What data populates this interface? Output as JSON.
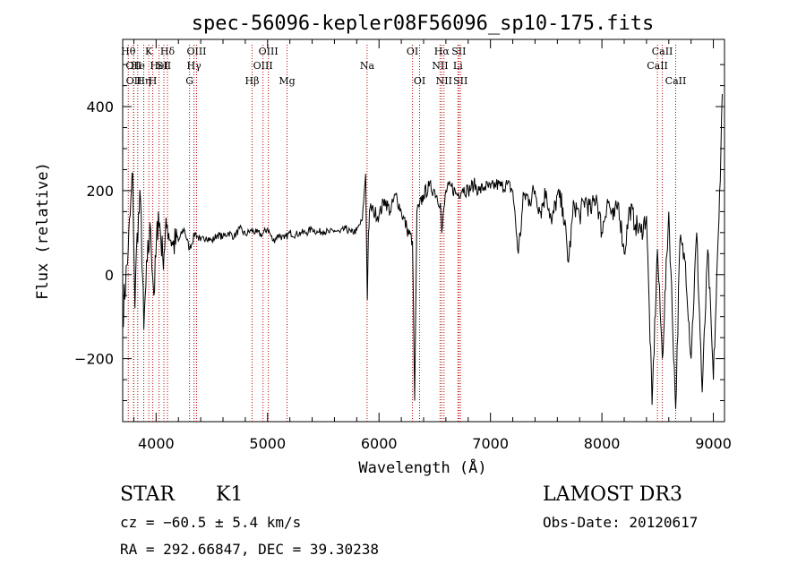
{
  "chart_data": {
    "type": "line",
    "title": "spec-56096-kepler08F56096_sp10-175.fits",
    "xlabel": "Wavelength (Å)",
    "ylabel": "Flux (relative)",
    "xlim": [
      3700,
      9100
    ],
    "ylim": [
      -350,
      560
    ],
    "xticks": [
      4000,
      5000,
      6000,
      7000,
      8000,
      9000
    ],
    "yticks": [
      -200,
      0,
      200,
      400
    ],
    "grid": false,
    "series": [
      {
        "name": "spectrum",
        "x": [
          3700,
          3750,
          3790,
          3810,
          3830,
          3860,
          3890,
          3920,
          3950,
          3980,
          4020,
          4060,
          4100,
          4150,
          4200,
          4250,
          4300,
          4350,
          4400,
          4450,
          4500,
          4550,
          4600,
          4650,
          4700,
          4750,
          4800,
          4850,
          4900,
          4950,
          5000,
          5050,
          5100,
          5150,
          5200,
          5250,
          5300,
          5350,
          5400,
          5450,
          5500,
          5550,
          5600,
          5650,
          5700,
          5750,
          5800,
          5850,
          5880,
          5895,
          5905,
          5920,
          5950,
          6000,
          6050,
          6100,
          6150,
          6200,
          6250,
          6300,
          6320,
          6340,
          6360,
          6400,
          6450,
          6500,
          6550,
          6563,
          6600,
          6650,
          6700,
          6750,
          6800,
          6850,
          6900,
          6950,
          7000,
          7050,
          7100,
          7150,
          7200,
          7250,
          7300,
          7350,
          7400,
          7450,
          7500,
          7550,
          7600,
          7650,
          7700,
          7750,
          7800,
          7850,
          7900,
          7950,
          8000,
          8050,
          8100,
          8150,
          8200,
          8250,
          8300,
          8350,
          8400,
          8450,
          8498,
          8542,
          8600,
          8662,
          8700,
          8750,
          8800,
          8850,
          8900,
          8950,
          9000,
          9050,
          9080
        ],
        "y": [
          -100,
          60,
          240,
          -80,
          100,
          180,
          -130,
          30,
          110,
          -50,
          150,
          40,
          120,
          70,
          80,
          110,
          60,
          100,
          80,
          90,
          80,
          95,
          90,
          100,
          90,
          110,
          95,
          105,
          100,
          95,
          110,
          80,
          95,
          85,
          100,
          95,
          100,
          100,
          110,
          100,
          105,
          100,
          105,
          100,
          110,
          100,
          105,
          130,
          240,
          -60,
          100,
          160,
          150,
          140,
          180,
          150,
          190,
          150,
          110,
          80,
          -300,
          150,
          160,
          190,
          210,
          200,
          170,
          100,
          200,
          210,
          190,
          205,
          200,
          215,
          200,
          210,
          205,
          215,
          210,
          215,
          200,
          50,
          190,
          180,
          200,
          150,
          200,
          120,
          190,
          160,
          30,
          170,
          140,
          180,
          150,
          190,
          100,
          180,
          130,
          170,
          50,
          160,
          120,
          100,
          140,
          -310,
          60,
          -200,
          150,
          -320,
          80,
          30,
          -200,
          100,
          -280,
          60,
          -250,
          130,
          430
        ]
      }
    ],
    "lines": [
      {
        "wl": 3750,
        "label": "Hθ",
        "row": 1
      },
      {
        "wl": 3798,
        "label": "OII",
        "row": 2
      },
      {
        "wl": 3800,
        "label": "OII",
        "row": 3
      },
      {
        "wl": 3835,
        "label": "He",
        "row": 2
      },
      {
        "wl": 3889,
        "label": "Hη",
        "row": 3
      },
      {
        "wl": 3934,
        "label": "K",
        "row": 1
      },
      {
        "wl": 3970,
        "label": "H",
        "row": 3
      },
      {
        "wl": 4026,
        "label": "HeI",
        "row": 2
      },
      {
        "wl": 4070,
        "label": "SII",
        "row": 2
      },
      {
        "wl": 4102,
        "label": "Hδ",
        "row": 1
      },
      {
        "wl": 4300,
        "label": "G",
        "row": 3
      },
      {
        "wl": 4340,
        "label": "Hγ",
        "row": 2
      },
      {
        "wl": 4363,
        "label": "OIII",
        "row": 1
      },
      {
        "wl": 4861,
        "label": "Hβ",
        "row": 3
      },
      {
        "wl": 4959,
        "label": "OIII",
        "row": 2
      },
      {
        "wl": 5007,
        "label": "OIII",
        "row": 1
      },
      {
        "wl": 5175,
        "label": "Mg",
        "row": 3
      },
      {
        "wl": 5893,
        "label": "Na",
        "row": 2
      },
      {
        "wl": 6300,
        "label": "OI",
        "row": 1
      },
      {
        "wl": 6364,
        "label": "OI",
        "row": 3
      },
      {
        "wl": 6548,
        "label": "NII",
        "row": 2
      },
      {
        "wl": 6563,
        "label": "Hα",
        "row": 1
      },
      {
        "wl": 6583,
        "label": "NII",
        "row": 3
      },
      {
        "wl": 6708,
        "label": "Li",
        "row": 2
      },
      {
        "wl": 6716,
        "label": "SII",
        "row": 1
      },
      {
        "wl": 6731,
        "label": "SII",
        "row": 3
      },
      {
        "wl": 8498,
        "label": "CaII",
        "row": 2
      },
      {
        "wl": 8542,
        "label": "CaII",
        "row": 1
      },
      {
        "wl": 8662,
        "label": "CaII",
        "row": 3
      }
    ]
  },
  "info": {
    "class": "STAR",
    "subclass": "K1",
    "survey": "LAMOST DR3",
    "cz": "cz = −60.5 ± 5.4 km/s",
    "obs_date": "Obs-Date: 20120617",
    "coords": "RA = 292.66847, DEC =  39.30238"
  }
}
